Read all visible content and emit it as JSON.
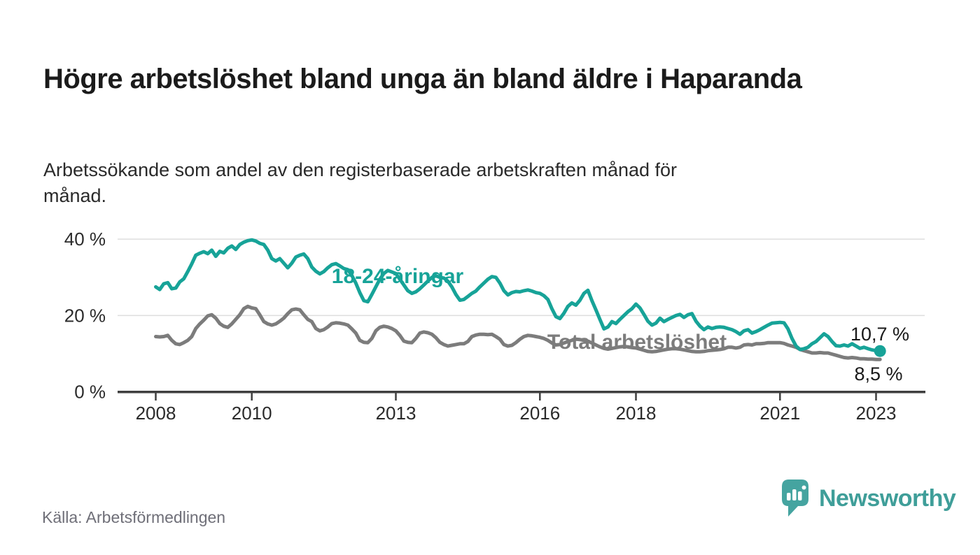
{
  "header": {
    "title": "Högre arbetslöshet bland unga än bland äldre i Haparanda",
    "subtitle": "Arbetssökande som andel av den registerbaserade arbetskraften månad för månad."
  },
  "footer": {
    "source": "Källa: Arbetsförmedlingen",
    "logo_text": "Newsworthy"
  },
  "colors": {
    "youth_line": "#17a398",
    "total_line": "#7c7c7c",
    "axis": "#3f3f3f",
    "gridline": "#dedede",
    "logo_mark": "#45a4a0",
    "logo_text": "#3f9e99",
    "value_label": "#191919"
  },
  "chart_data": {
    "type": "line",
    "x_start": "2008-01",
    "x_end": "2023-02",
    "freq": "monthly",
    "ylim": [
      0,
      44
    ],
    "grid": "horizontal-only",
    "yticks": [
      {
        "value": 0,
        "label": "0 %"
      },
      {
        "value": 20,
        "label": "20 %"
      },
      {
        "value": 40,
        "label": "40 %"
      }
    ],
    "xticks": [
      {
        "year": 2008,
        "label": "2008"
      },
      {
        "year": 2010,
        "label": "2010"
      },
      {
        "year": 2013,
        "label": "2013"
      },
      {
        "year": 2016,
        "label": "2016"
      },
      {
        "year": 2018,
        "label": "2018"
      },
      {
        "year": 2021,
        "label": "2021"
      },
      {
        "year": 2023,
        "label": "2023"
      }
    ],
    "series": [
      {
        "name": "18-24-åringar",
        "color": "#17a398",
        "end_label": "10,7 %",
        "end_value": 10.7,
        "values": [
          27.5,
          26.8,
          28.3,
          28.6,
          27.0,
          27.2,
          28.8,
          29.6,
          31.5,
          33.5,
          35.8,
          36.3,
          36.7,
          36.2,
          37.1,
          35.5,
          36.8,
          36.4,
          37.6,
          38.2,
          37.3,
          38.6,
          39.2,
          39.6,
          39.8,
          39.5,
          38.9,
          38.6,
          37.1,
          34.9,
          34.3,
          34.9,
          33.7,
          32.5,
          33.7,
          35.3,
          35.8,
          36.1,
          34.9,
          32.7,
          31.6,
          30.9,
          31.5,
          32.5,
          33.3,
          33.6,
          33.0,
          32.3,
          32.0,
          30.5,
          28.5,
          26.0,
          23.9,
          23.6,
          25.5,
          27.5,
          29.5,
          31.0,
          31.8,
          31.4,
          31.0,
          29.5,
          28.0,
          26.5,
          25.8,
          26.2,
          27.0,
          28.0,
          29.0,
          30.0,
          30.4,
          30.0,
          29.8,
          29.0,
          27.5,
          25.5,
          24.0,
          24.2,
          25.0,
          25.8,
          26.4,
          27.5,
          28.5,
          29.5,
          30.2,
          30.0,
          28.5,
          26.5,
          25.4,
          26.0,
          26.3,
          26.2,
          26.5,
          26.7,
          26.4,
          26.0,
          25.8,
          25.2,
          24.2,
          21.8,
          19.7,
          19.2,
          20.6,
          22.4,
          23.3,
          22.7,
          24.0,
          25.8,
          26.6,
          23.9,
          21.5,
          19.0,
          16.5,
          17.0,
          18.4,
          17.9,
          19.0,
          20.0,
          21.0,
          21.8,
          23.0,
          22.0,
          20.3,
          18.5,
          17.5,
          18.0,
          19.3,
          18.4,
          19.0,
          19.5,
          20.0,
          20.3,
          19.5,
          20.2,
          20.5,
          18.5,
          17.2,
          16.3,
          17.0,
          16.6,
          16.9,
          17.0,
          16.9,
          16.6,
          16.3,
          15.8,
          15.1,
          16.0,
          16.3,
          15.4,
          15.8,
          16.3,
          16.9,
          17.5,
          18.0,
          18.1,
          18.2,
          18.1,
          16.5,
          14.0,
          12.0,
          11.1,
          11.3,
          11.7,
          12.6,
          13.2,
          14.2,
          15.2,
          14.5,
          13.2,
          12.1,
          12.0,
          12.3,
          12.0,
          12.6,
          12.0,
          11.4,
          11.7,
          11.3,
          11.0,
          10.8,
          10.7
        ]
      },
      {
        "name": "Total arbetslöshet",
        "color": "#7c7c7c",
        "end_label": "8,5 %",
        "end_value": 8.5,
        "values": [
          14.5,
          14.4,
          14.5,
          14.8,
          13.5,
          12.6,
          12.4,
          12.9,
          13.5,
          14.5,
          16.6,
          17.8,
          18.8,
          19.9,
          20.2,
          19.3,
          17.9,
          17.2,
          16.9,
          17.8,
          19.0,
          20.2,
          21.8,
          22.4,
          22.0,
          21.8,
          20.2,
          18.4,
          17.8,
          17.5,
          17.8,
          18.5,
          19.3,
          20.5,
          21.5,
          21.7,
          21.5,
          20.2,
          19.0,
          18.4,
          16.6,
          16.0,
          16.3,
          17.0,
          17.9,
          18.1,
          18.0,
          17.8,
          17.5,
          16.5,
          15.4,
          13.5,
          13.0,
          12.9,
          14.0,
          16.0,
          16.9,
          17.2,
          17.0,
          16.6,
          16.0,
          14.8,
          13.3,
          13.0,
          12.9,
          14.0,
          15.4,
          15.7,
          15.5,
          15.1,
          14.2,
          13.0,
          12.4,
          12.0,
          12.2,
          12.4,
          12.6,
          12.6,
          13.2,
          14.5,
          14.9,
          15.1,
          15.1,
          15.0,
          15.1,
          14.5,
          13.8,
          12.4,
          12.0,
          12.2,
          12.9,
          13.8,
          14.5,
          14.8,
          14.7,
          14.5,
          14.3,
          14.0,
          13.5,
          12.8,
          12.3,
          12.4,
          12.8,
          13.2,
          13.5,
          13.8,
          13.7,
          13.5,
          13.3,
          12.8,
          12.3,
          11.8,
          11.4,
          11.2,
          11.4,
          11.6,
          11.8,
          11.9,
          11.8,
          11.6,
          11.5,
          11.2,
          10.9,
          10.6,
          10.5,
          10.6,
          10.8,
          11.0,
          11.2,
          11.3,
          11.3,
          11.2,
          11.0,
          10.8,
          10.6,
          10.5,
          10.5,
          10.6,
          10.8,
          10.9,
          11.0,
          11.1,
          11.3,
          11.7,
          11.7,
          11.5,
          11.7,
          12.3,
          12.4,
          12.3,
          12.6,
          12.6,
          12.7,
          12.9,
          12.9,
          12.9,
          12.9,
          12.7,
          12.3,
          12.0,
          11.7,
          11.1,
          10.8,
          10.5,
          10.2,
          10.2,
          10.3,
          10.2,
          10.2,
          9.9,
          9.6,
          9.3,
          9.0,
          8.9,
          9.0,
          8.9,
          8.7,
          8.7,
          8.6,
          8.6,
          8.5,
          8.5
        ]
      }
    ]
  }
}
